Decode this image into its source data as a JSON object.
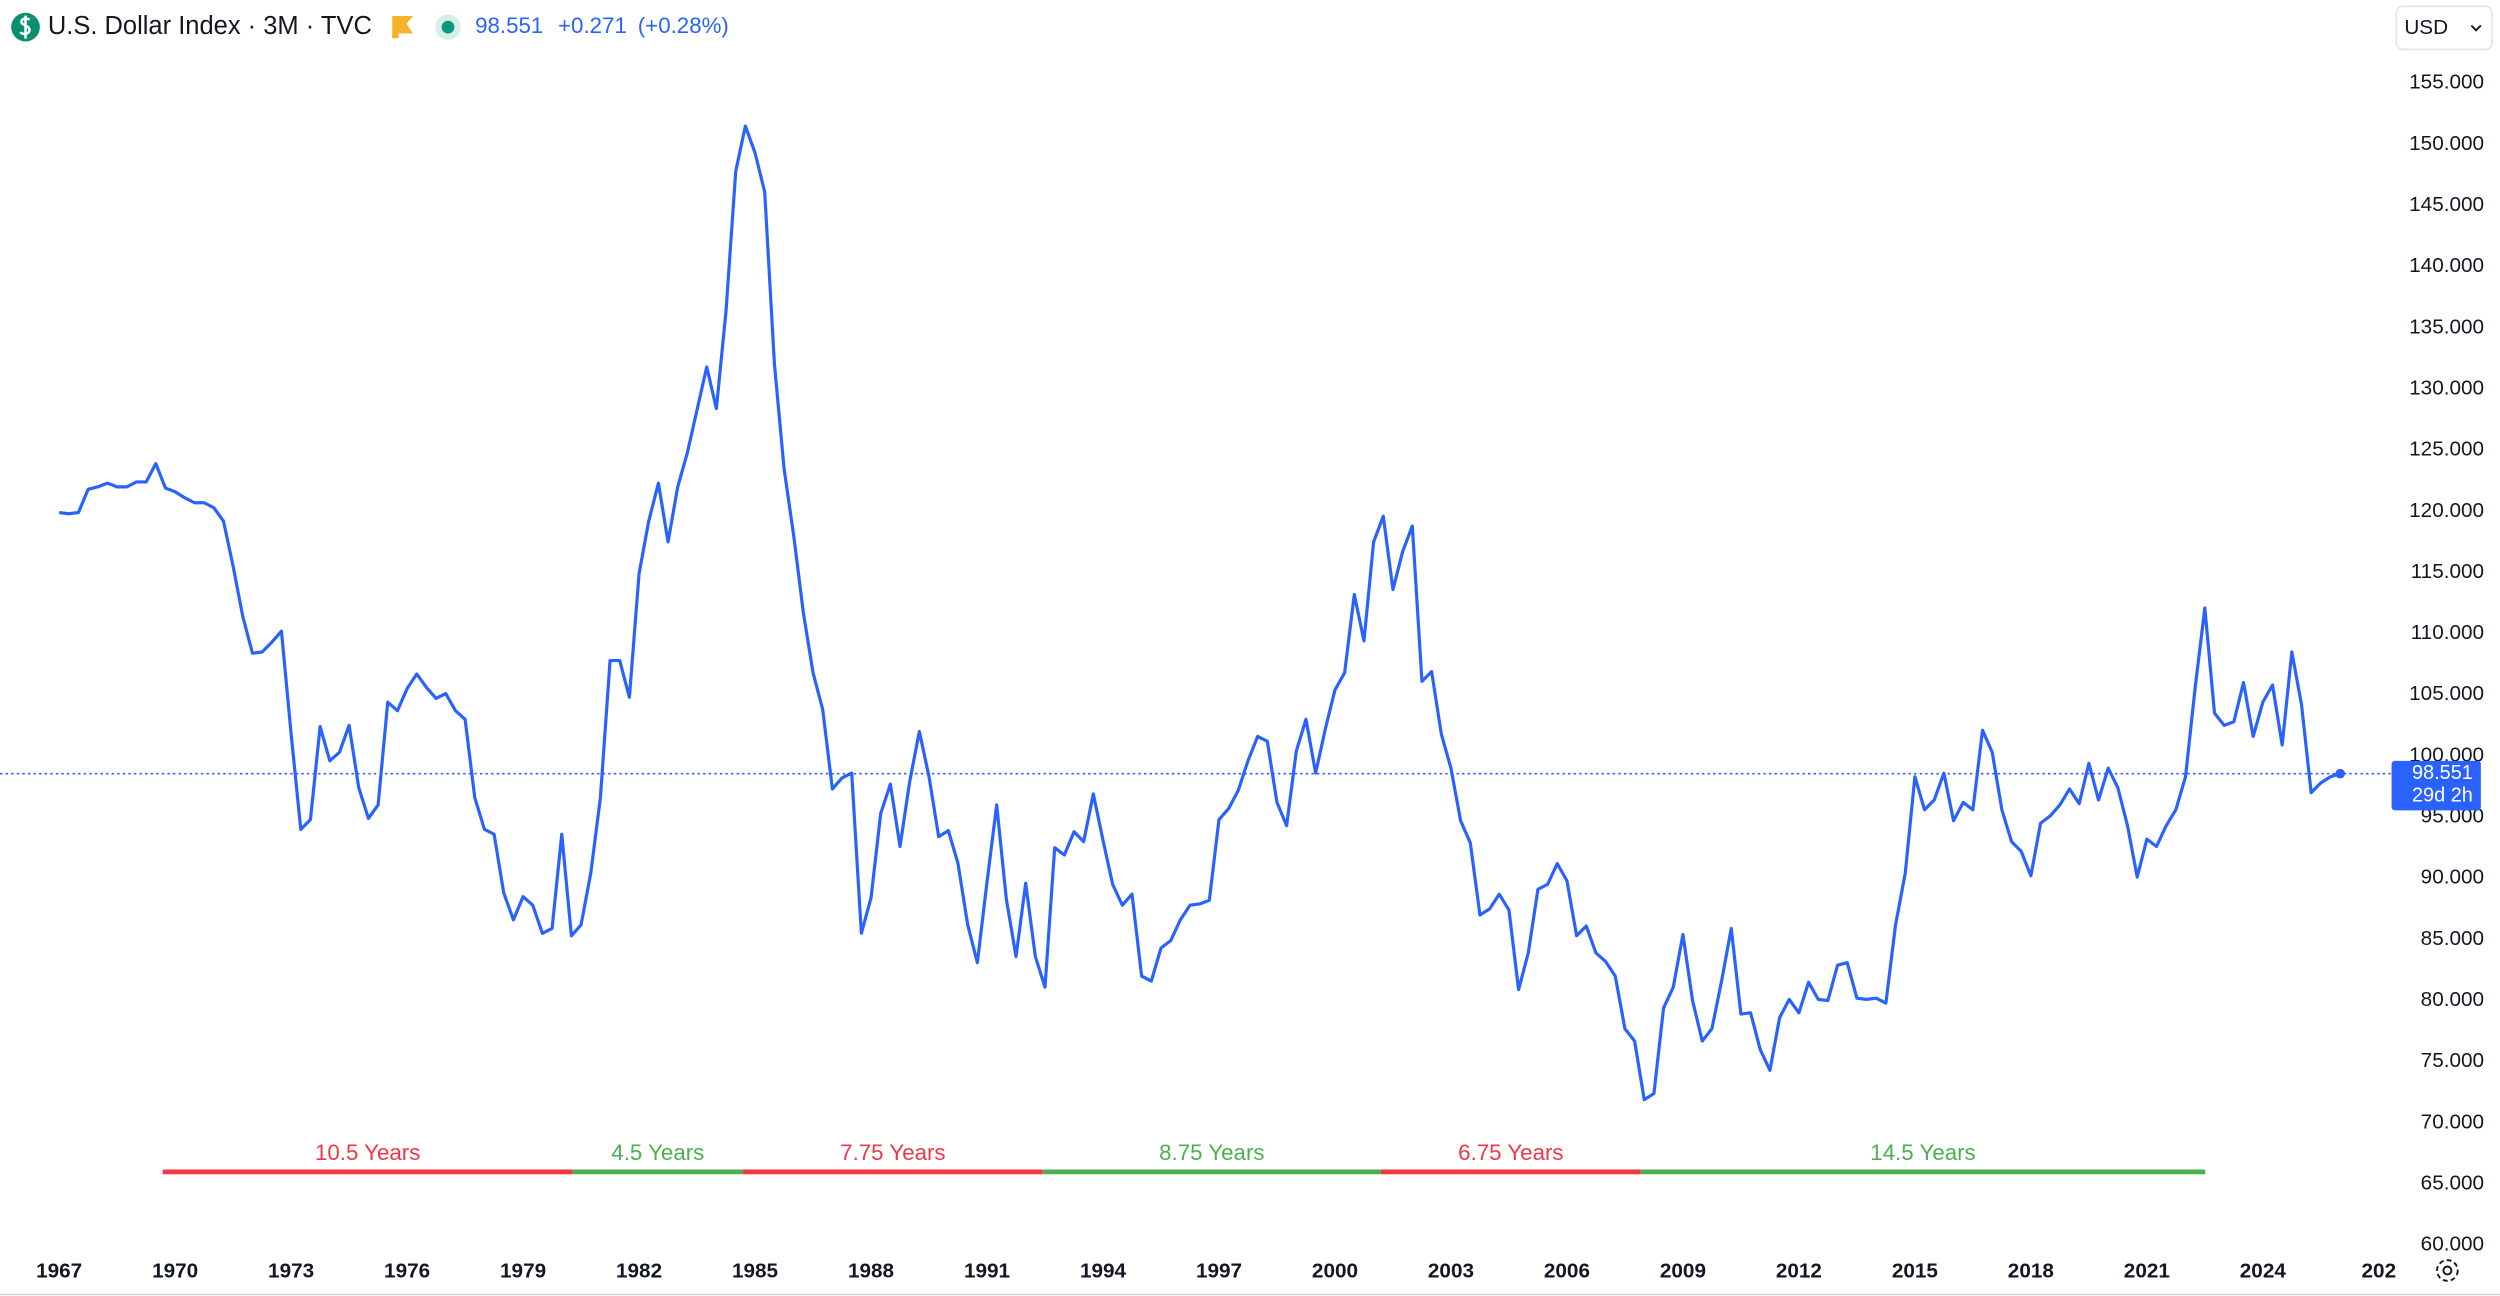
{
  "chart_data": {
    "type": "line",
    "title": "U.S. Dollar Index · 3M · TVC",
    "change": "+0.271",
    "change_percent": "(+0.28%)",
    "countdown": "29d 2h",
    "currency": "USD",
    "x": [
      1967,
      1967.25,
      1967.5,
      1967.75,
      1968,
      1968.25,
      1968.5,
      1968.75,
      1969,
      1969.25,
      1969.5,
      1969.75,
      1970,
      1970.25,
      1970.5,
      1970.75,
      1971,
      1971.25,
      1971.5,
      1971.75,
      1972,
      1972.25,
      1972.5,
      1972.75,
      1973,
      1973.25,
      1973.5,
      1973.75,
      1974,
      1974.25,
      1974.5,
      1974.75,
      1975,
      1975.25,
      1975.5,
      1975.75,
      1976,
      1976.25,
      1976.5,
      1976.75,
      1977,
      1977.25,
      1977.5,
      1977.75,
      1978,
      1978.25,
      1978.5,
      1978.75,
      1979,
      1979.25,
      1979.5,
      1979.75,
      1980,
      1980.25,
      1980.5,
      1980.75,
      1981,
      1981.25,
      1981.5,
      1981.75,
      1982,
      1982.25,
      1982.5,
      1982.75,
      1983,
      1983.25,
      1983.5,
      1983.75,
      1984,
      1984.25,
      1984.5,
      1984.75,
      1985,
      1985.25,
      1985.5,
      1985.75,
      1986,
      1986.25,
      1986.5,
      1986.75,
      1987,
      1987.25,
      1987.5,
      1987.75,
      1988,
      1988.25,
      1988.5,
      1988.75,
      1989,
      1989.25,
      1989.5,
      1989.75,
      1990,
      1990.25,
      1990.5,
      1990.75,
      1991,
      1991.25,
      1991.5,
      1991.75,
      1992,
      1992.25,
      1992.5,
      1992.75,
      1993,
      1993.25,
      1993.5,
      1993.75,
      1994,
      1994.25,
      1994.5,
      1994.75,
      1995,
      1995.25,
      1995.5,
      1995.75,
      1996,
      1996.25,
      1996.5,
      1996.75,
      1997,
      1997.25,
      1997.5,
      1997.75,
      1998,
      1998.25,
      1998.5,
      1998.75,
      1999,
      1999.25,
      1999.5,
      1999.75,
      2000,
      2000.25,
      2000.5,
      2000.75,
      2001,
      2001.25,
      2001.5,
      2001.75,
      2002,
      2002.25,
      2002.5,
      2002.75,
      2003,
      2003.25,
      2003.5,
      2003.75,
      2004,
      2004.25,
      2004.5,
      2004.75,
      2005,
      2005.25,
      2005.5,
      2005.75,
      2006,
      2006.25,
      2006.5,
      2006.75,
      2007,
      2007.25,
      2007.5,
      2007.75,
      2008,
      2008.25,
      2008.5,
      2008.75,
      2009,
      2009.25,
      2009.5,
      2009.75,
      2010,
      2010.25,
      2010.5,
      2010.75,
      2011,
      2011.25,
      2011.5,
      2011.75,
      2012,
      2012.25,
      2012.5,
      2012.75,
      2013,
      2013.25,
      2013.5,
      2013.75,
      2014,
      2014.25,
      2014.5,
      2014.75,
      2015,
      2015.25,
      2015.5,
      2015.75,
      2016,
      2016.25,
      2016.5,
      2016.75,
      2017,
      2017.25,
      2017.5,
      2017.75,
      2018,
      2018.25,
      2018.5,
      2018.75,
      2019,
      2019.25,
      2019.5,
      2019.75,
      2020,
      2020.25,
      2020.5,
      2020.75,
      2021,
      2021.25,
      2021.5,
      2021.75,
      2022,
      2022.25,
      2022.5,
      2022.75,
      2023,
      2023.25,
      2023.5,
      2023.75,
      2024,
      2024.25,
      2024.5,
      2024.75,
      2025,
      2025.25,
      2025.5,
      2025.75,
      2026
    ],
    "series": [
      {
        "color": "#2962ff",
        "values": [
          119.9,
          119.8,
          119.9,
          121.8,
          122.0,
          122.3,
          122.0,
          122.0,
          122.4,
          122.4,
          123.9,
          121.9,
          121.6,
          121.1,
          120.7,
          120.7,
          120.3,
          119.2,
          115.5,
          111.4,
          108.4,
          108.5,
          109.3,
          110.2,
          101.8,
          94.0,
          94.8,
          102.4,
          99.6,
          100.3,
          102.5,
          97.4,
          94.9,
          96.0,
          104.4,
          103.7,
          105.5,
          106.7,
          105.6,
          104.7,
          105.1,
          103.7,
          103.0,
          96.6,
          94.0,
          93.6,
          88.8,
          86.6,
          88.5,
          87.8,
          85.5,
          85.9,
          93.6,
          85.3,
          86.2,
          90.4,
          96.6,
          107.8,
          107.8,
          104.8,
          114.9,
          119.2,
          122.3,
          117.5,
          122.0,
          124.8,
          128.3,
          131.8,
          128.4,
          136.4,
          147.8,
          151.5,
          149.3,
          146.1,
          132.1,
          123.5,
          118.0,
          111.7,
          106.8,
          103.8,
          97.3,
          98.2,
          98.6,
          85.5,
          88.4,
          95.3,
          97.7,
          92.6,
          97.9,
          102.0,
          98.3,
          93.4,
          93.9,
          91.2,
          86.2,
          83.1,
          89.7,
          96.0,
          88.3,
          83.6,
          89.6,
          83.6,
          81.1,
          92.5,
          91.9,
          93.8,
          93.0,
          96.9,
          93.1,
          89.5,
          87.8,
          88.7,
          82.0,
          81.6,
          84.3,
          84.9,
          86.6,
          87.8,
          87.9,
          88.2,
          94.8,
          95.7,
          97.2,
          99.6,
          101.6,
          101.2,
          96.2,
          94.3,
          100.4,
          103.0,
          98.6,
          102.2,
          105.4,
          106.8,
          113.2,
          109.4,
          117.5,
          119.6,
          113.6,
          116.7,
          118.8,
          106.1,
          106.9,
          101.8,
          99.0,
          94.7,
          92.9,
          87.0,
          87.5,
          88.7,
          87.4,
          80.9,
          83.9,
          89.1,
          89.5,
          91.2,
          89.8,
          85.3,
          86.1,
          83.9,
          83.2,
          82.0,
          77.7,
          76.7,
          71.9,
          72.4,
          79.4,
          81.1,
          85.4,
          80.0,
          76.7,
          77.7,
          81.6,
          85.9,
          78.9,
          79.0,
          76.0,
          74.3,
          78.6,
          80.1,
          79.0,
          81.5,
          80.1,
          80.0,
          82.9,
          83.1,
          80.2,
          80.1,
          80.2,
          79.8,
          86.2,
          90.4,
          98.3,
          95.6,
          96.4,
          98.6,
          94.7,
          96.2,
          95.6,
          102.1,
          100.3,
          95.6,
          93.0,
          92.2,
          90.2,
          94.5,
          95.1,
          96.0,
          97.3,
          96.1,
          99.4,
          96.4,
          99.0,
          97.4,
          94.3,
          90.1,
          93.2,
          92.6,
          94.3,
          95.6,
          98.3,
          105.6,
          112.1,
          103.5,
          102.5,
          102.8,
          106.0,
          101.6,
          104.4,
          105.8,
          100.9,
          108.5,
          104.2,
          97.0,
          97.8,
          98.3,
          98.551
        ]
      }
    ],
    "xlim": [
      1965.47,
      2027.33
    ],
    "ylim": [
      59.5,
      161.8
    ],
    "xticks": [
      1967,
      1970,
      1973,
      1976,
      1979,
      1982,
      1985,
      1988,
      1991,
      1994,
      1997,
      2000,
      2003,
      2006,
      2009,
      2012,
      2015,
      2018,
      2021,
      2024,
      {
        "value": 2027,
        "label": "202"
      }
    ],
    "yticks": [
      {
        "value": 60,
        "label": "60.000"
      },
      {
        "value": 65,
        "label": "65.000"
      },
      {
        "value": 70,
        "label": "70.000"
      },
      {
        "value": 75,
        "label": "75.000"
      },
      {
        "value": 80,
        "label": "80.000"
      },
      {
        "value": 85,
        "label": "85.000"
      },
      {
        "value": 90,
        "label": "90.000"
      },
      {
        "value": 95,
        "label": "95.000"
      },
      {
        "value": 100,
        "label": "100.000"
      },
      {
        "value": 105,
        "label": "105.000"
      },
      {
        "value": 110,
        "label": "110.000"
      },
      {
        "value": 115,
        "label": "115.000"
      },
      {
        "value": 120,
        "label": "120.000"
      },
      {
        "value": 125,
        "label": "125.000"
      },
      {
        "value": 130,
        "label": "130.000"
      },
      {
        "value": 135,
        "label": "135.000"
      },
      {
        "value": 140,
        "label": "140.000"
      },
      {
        "value": 145,
        "label": "145.000"
      },
      {
        "value": 150,
        "label": "150.000"
      },
      {
        "value": 155,
        "label": "155.000"
      }
    ],
    "grid": false,
    "last_price_line": true,
    "annotations": [
      {
        "text": "10.5 Years",
        "x": [
          1969.68,
          1980.28
        ],
        "y": 66,
        "color": "#f23645"
      },
      {
        "text": "4.5 Years",
        "x": [
          1980.28,
          1984.69
        ],
        "y": 66,
        "color": "#4caf50"
      },
      {
        "text": "7.75 Years",
        "x": [
          1984.69,
          1992.44
        ],
        "y": 66,
        "color": "#f23645"
      },
      {
        "text": "8.75 Years",
        "x": [
          1992.44,
          2001.19
        ],
        "y": 66,
        "color": "#4caf50"
      },
      {
        "text": "6.75 Years",
        "x": [
          2001.19,
          2007.91
        ],
        "y": 66,
        "color": "#f23645"
      },
      {
        "text": "14.5 Years",
        "x": [
          2007.91,
          2022.51
        ],
        "y": 66,
        "color": "#4caf50"
      }
    ]
  }
}
